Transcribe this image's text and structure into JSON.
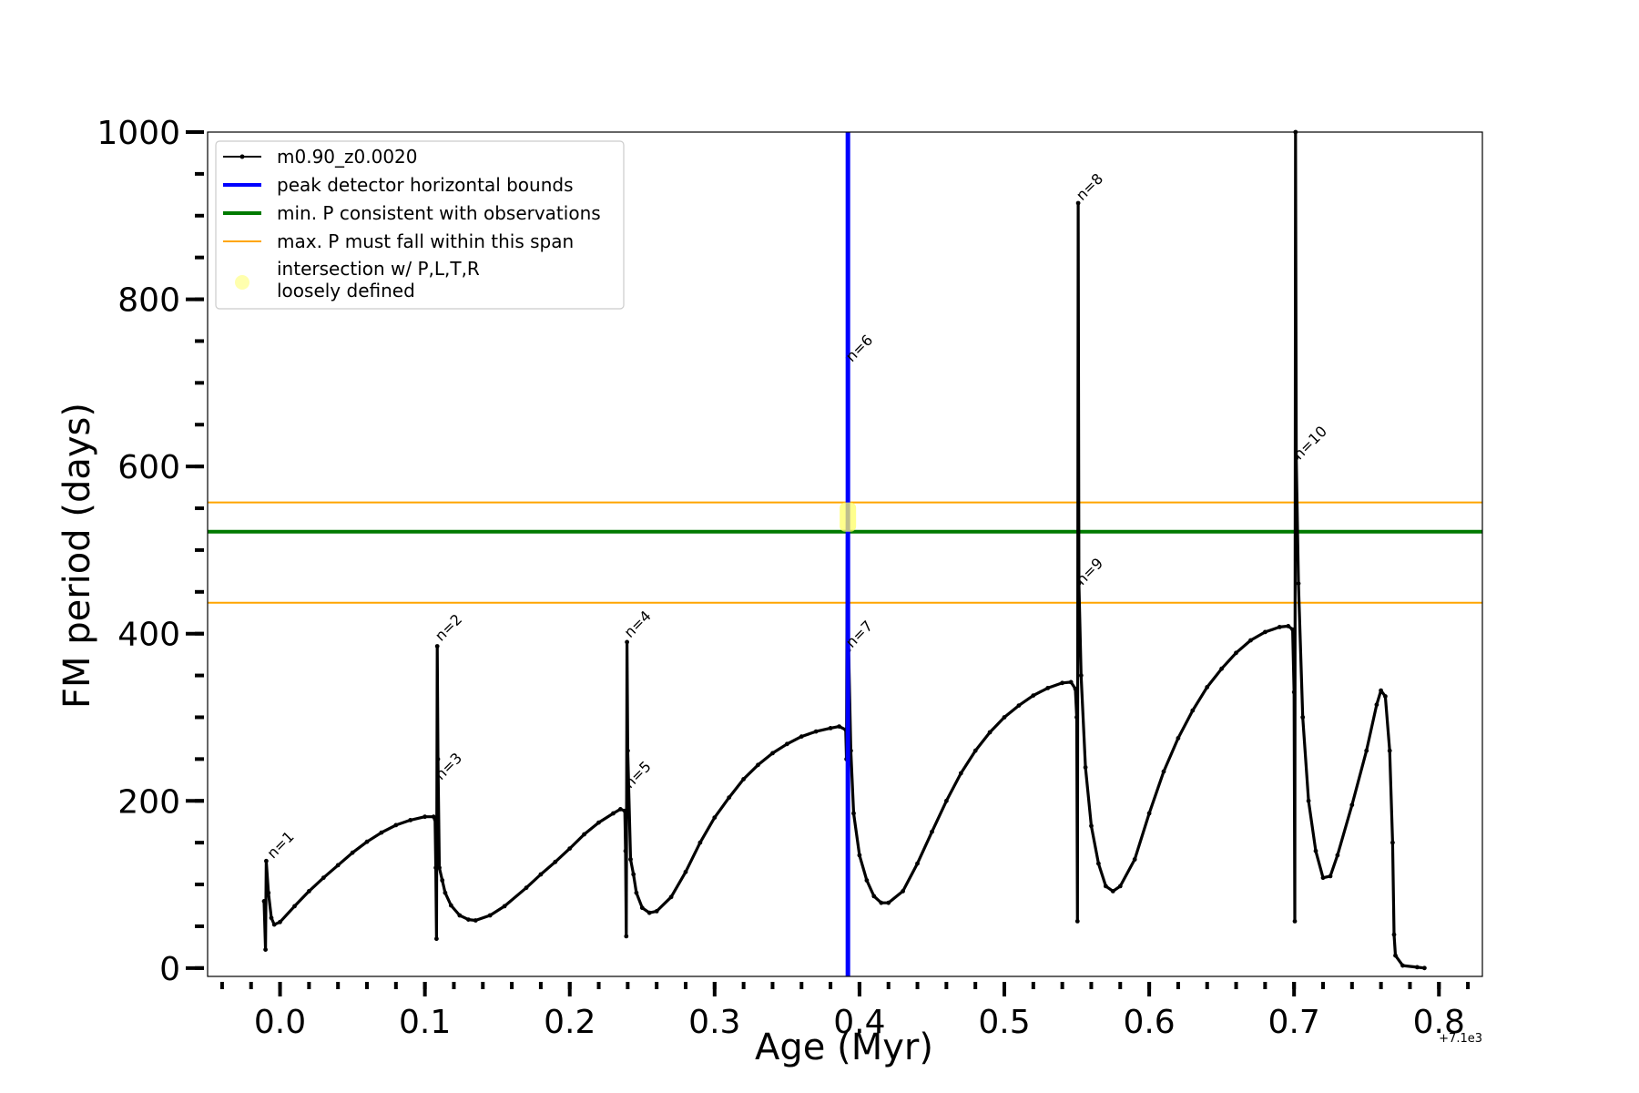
{
  "chart_data": {
    "type": "line",
    "xlabel": "Age (Myr)",
    "ylabel": "FM period (days)",
    "x_offset_label": "+7.1e3",
    "xlim": [
      -0.05,
      0.83
    ],
    "ylim": [
      -10,
      1000
    ],
    "x_ticks": [
      0.0,
      0.1,
      0.2,
      0.3,
      0.4,
      0.5,
      0.6,
      0.7,
      0.8
    ],
    "x_tick_labels": [
      "0.0",
      "0.1",
      "0.2",
      "0.3",
      "0.4",
      "0.5",
      "0.6",
      "0.7",
      "0.8"
    ],
    "x_minor_step": 0.02,
    "y_ticks": [
      0,
      200,
      400,
      600,
      800,
      1000
    ],
    "y_tick_labels": [
      "0",
      "200",
      "400",
      "600",
      "800",
      "1000"
    ],
    "y_minor_step": 50,
    "grid": false,
    "legend_position": "top-left",
    "series": [
      {
        "name": "m0.90_z0.0020",
        "color": "#000000",
        "points": [
          [
            -0.011,
            80
          ],
          [
            -0.01,
            22
          ],
          [
            -0.0095,
            128
          ],
          [
            -0.008,
            90
          ],
          [
            -0.006,
            60
          ],
          [
            -0.004,
            52
          ],
          [
            0.0,
            55
          ],
          [
            0.01,
            74
          ],
          [
            0.02,
            92
          ],
          [
            0.03,
            108
          ],
          [
            0.04,
            123
          ],
          [
            0.05,
            138
          ],
          [
            0.06,
            151
          ],
          [
            0.07,
            162
          ],
          [
            0.08,
            171
          ],
          [
            0.09,
            177
          ],
          [
            0.1,
            181
          ],
          [
            0.106,
            181
          ],
          [
            0.107,
            178
          ],
          [
            0.1075,
            120
          ],
          [
            0.108,
            35
          ],
          [
            0.1085,
            385
          ],
          [
            0.109,
            250
          ],
          [
            0.11,
            120
          ],
          [
            0.112,
            105
          ],
          [
            0.114,
            90
          ],
          [
            0.118,
            75
          ],
          [
            0.124,
            63
          ],
          [
            0.13,
            58
          ],
          [
            0.135,
            57
          ],
          [
            0.145,
            63
          ],
          [
            0.155,
            74
          ],
          [
            0.17,
            96
          ],
          [
            0.18,
            112
          ],
          [
            0.19,
            127
          ],
          [
            0.2,
            143
          ],
          [
            0.21,
            160
          ],
          [
            0.22,
            174
          ],
          [
            0.23,
            185
          ],
          [
            0.235,
            190
          ],
          [
            0.238,
            188
          ],
          [
            0.2385,
            140
          ],
          [
            0.239,
            38
          ],
          [
            0.2395,
            390
          ],
          [
            0.24,
            260
          ],
          [
            0.242,
            130
          ],
          [
            0.244,
            112
          ],
          [
            0.246,
            90
          ],
          [
            0.25,
            72
          ],
          [
            0.255,
            66
          ],
          [
            0.26,
            68
          ],
          [
            0.27,
            85
          ],
          [
            0.28,
            115
          ],
          [
            0.29,
            150
          ],
          [
            0.3,
            180
          ],
          [
            0.31,
            204
          ],
          [
            0.32,
            226
          ],
          [
            0.33,
            243
          ],
          [
            0.34,
            257
          ],
          [
            0.35,
            268
          ],
          [
            0.36,
            277
          ],
          [
            0.37,
            283
          ],
          [
            0.38,
            287
          ],
          [
            0.386,
            289
          ],
          [
            0.3905,
            285
          ],
          [
            0.391,
            250
          ],
          [
            0.392,
            730
          ],
          [
            0.3925,
            380
          ],
          [
            0.394,
            260
          ],
          [
            0.396,
            185
          ],
          [
            0.4,
            135
          ],
          [
            0.405,
            105
          ],
          [
            0.41,
            86
          ],
          [
            0.415,
            78
          ],
          [
            0.42,
            78
          ],
          [
            0.43,
            92
          ],
          [
            0.44,
            125
          ],
          [
            0.45,
            163
          ],
          [
            0.46,
            200
          ],
          [
            0.47,
            233
          ],
          [
            0.48,
            260
          ],
          [
            0.49,
            282
          ],
          [
            0.5,
            300
          ],
          [
            0.51,
            314
          ],
          [
            0.52,
            326
          ],
          [
            0.53,
            335
          ],
          [
            0.54,
            341
          ],
          [
            0.546,
            342
          ],
          [
            0.549,
            334
          ],
          [
            0.55,
            300
          ],
          [
            0.5505,
            56
          ],
          [
            0.551,
            915
          ],
          [
            0.5515,
            460
          ],
          [
            0.553,
            350
          ],
          [
            0.556,
            240
          ],
          [
            0.56,
            170
          ],
          [
            0.565,
            125
          ],
          [
            0.57,
            98
          ],
          [
            0.575,
            92
          ],
          [
            0.58,
            98
          ],
          [
            0.59,
            130
          ],
          [
            0.6,
            185
          ],
          [
            0.61,
            235
          ],
          [
            0.62,
            275
          ],
          [
            0.63,
            308
          ],
          [
            0.64,
            336
          ],
          [
            0.65,
            358
          ],
          [
            0.66,
            377
          ],
          [
            0.67,
            392
          ],
          [
            0.68,
            402
          ],
          [
            0.69,
            408
          ],
          [
            0.696,
            409
          ],
          [
            0.699,
            405
          ],
          [
            0.7,
            330
          ],
          [
            0.7005,
            56
          ],
          [
            0.701,
            1000
          ],
          [
            0.7015,
            610
          ],
          [
            0.703,
            460
          ],
          [
            0.706,
            300
          ],
          [
            0.71,
            200
          ],
          [
            0.715,
            140
          ],
          [
            0.72,
            108
          ],
          [
            0.725,
            110
          ],
          [
            0.73,
            135
          ],
          [
            0.74,
            195
          ],
          [
            0.75,
            260
          ],
          [
            0.757,
            315
          ],
          [
            0.76,
            332
          ],
          [
            0.763,
            325
          ],
          [
            0.766,
            260
          ],
          [
            0.768,
            150
          ],
          [
            0.769,
            40
          ],
          [
            0.77,
            15
          ],
          [
            0.775,
            3
          ],
          [
            0.785,
            1
          ],
          [
            0.79,
            0
          ]
        ]
      }
    ],
    "vertical_lines": [
      {
        "name": "peak detector horizontal bounds",
        "x": 0.392,
        "color": "#0000ff"
      }
    ],
    "horizontal_lines": [
      {
        "name": "min. P consistent with observations",
        "y": 522,
        "color": "#007a00"
      },
      {
        "name": "max. P must fall within this span",
        "y": 557,
        "color": "#ffa500"
      },
      {
        "name": "max. P must fall within this span",
        "y": 437,
        "color": "#ffa500"
      }
    ],
    "highlight_region": {
      "name": "intersection w/ P,L,T,R\nloosely defined",
      "x": 0.392,
      "y_range": [
        522,
        557
      ],
      "color": "#ffff66"
    },
    "annotations": [
      {
        "text": "n=1",
        "x": -0.006,
        "y": 128
      },
      {
        "text": "n=2",
        "x": 0.11,
        "y": 388
      },
      {
        "text": "n=3",
        "x": 0.11,
        "y": 222
      },
      {
        "text": "n=4",
        "x": 0.2405,
        "y": 392
      },
      {
        "text": "n=5",
        "x": 0.2405,
        "y": 212
      },
      {
        "text": "n=6",
        "x": 0.3935,
        "y": 722
      },
      {
        "text": "n=7",
        "x": 0.3935,
        "y": 380
      },
      {
        "text": "n=8",
        "x": 0.5525,
        "y": 915
      },
      {
        "text": "n=9",
        "x": 0.5525,
        "y": 455
      },
      {
        "text": "n=10",
        "x": 0.7025,
        "y": 605
      }
    ]
  },
  "legend": {
    "items": [
      {
        "label": "m0.90_z0.0020",
        "kind": "line-marker",
        "color": "#000000"
      },
      {
        "label": "peak detector horizontal bounds",
        "kind": "line",
        "color": "#0000ff"
      },
      {
        "label": "min. P consistent with observations",
        "kind": "line",
        "color": "#007a00"
      },
      {
        "label": "max. P must fall within this span",
        "kind": "thin-line",
        "color": "#ffa500"
      },
      {
        "label": "intersection w/ P,L,T,R",
        "label2": "loosely defined",
        "kind": "dot",
        "color": "#ffff99"
      }
    ]
  }
}
